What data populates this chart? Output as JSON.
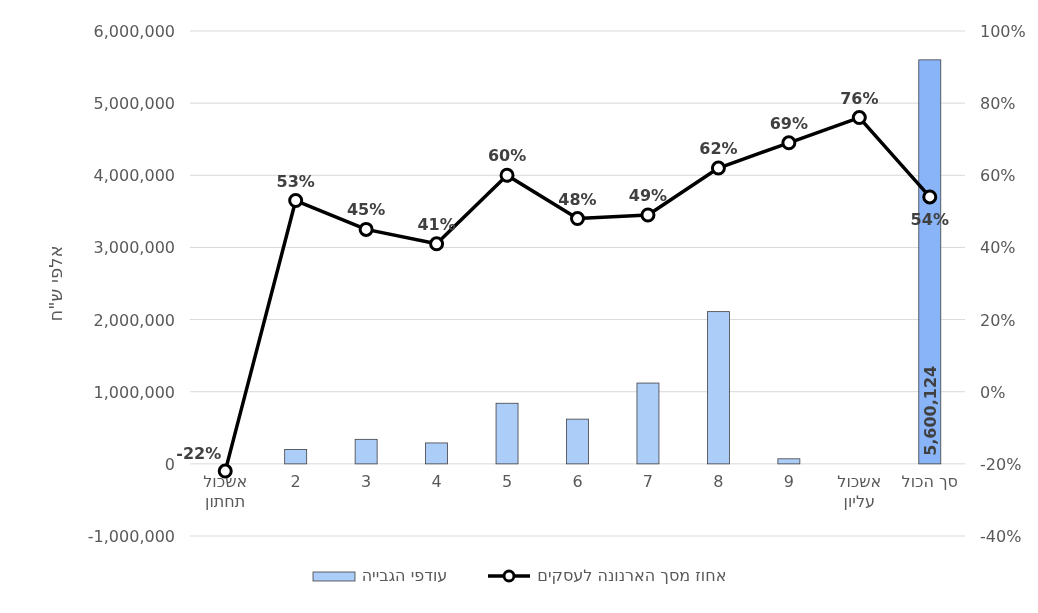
{
  "chart_data": {
    "type": "bar",
    "categories": [
      "אשכול תחתון",
      "2",
      "3",
      "4",
      "5",
      "6",
      "7",
      "8",
      "9",
      "אשכול עליון",
      "סך הכול"
    ],
    "ylabel": "אלפי ש\"ח",
    "ylim": [
      -1000000,
      6000000
    ],
    "yticks": [
      {
        "value": -1000000,
        "label": "-1,000,000"
      },
      {
        "value": 0,
        "label": "0"
      },
      {
        "value": 1000000,
        "label": "1,000,000"
      },
      {
        "value": 2000000,
        "label": "2,000,000"
      },
      {
        "value": 3000000,
        "label": "3,000,000"
      },
      {
        "value": 4000000,
        "label": "4,000,000"
      },
      {
        "value": 5000000,
        "label": "5,000,000"
      },
      {
        "value": 6000000,
        "label": "6,000,000"
      }
    ],
    "y2lim": [
      -40,
      100
    ],
    "y2ticks": [
      {
        "value": -40,
        "label": "-40%"
      },
      {
        "value": -20,
        "label": "-20%"
      },
      {
        "value": 0,
        "label": "0%"
      },
      {
        "value": 20,
        "label": "20%"
      },
      {
        "value": 40,
        "label": "40%"
      },
      {
        "value": 60,
        "label": "60%"
      },
      {
        "value": 80,
        "label": "80%"
      },
      {
        "value": 100,
        "label": "100%"
      }
    ],
    "grid": "y",
    "legend": "bottom",
    "marker": "circle",
    "series": [
      {
        "name": "עודפי הגבייה",
        "colors": [
          "#adcdf9",
          "#adcdf9",
          "#adcdf9",
          "#adcdf9",
          "#adcdf9",
          "#adcdf9",
          "#adcdf9",
          "#adcdf9",
          "#adcdf9",
          "#adcdf9",
          "#8ab4f8"
        ],
        "values": [
          0,
          200000,
          340000,
          290000,
          840000,
          620000,
          1120000,
          2110000,
          70000,
          0,
          5600124
        ],
        "value_labels": [
          null,
          null,
          null,
          null,
          null,
          null,
          null,
          null,
          null,
          null,
          "5,600,124"
        ]
      },
      {
        "name": "אחוז מסך הארנונה לעסקים",
        "type": "line",
        "axis": "y2",
        "color": "#000000",
        "values": [
          -22,
          53,
          45,
          41,
          60,
          48,
          49,
          62,
          69,
          76,
          54
        ],
        "value_labels": [
          "-22%",
          "53%",
          "45%",
          "41%",
          "60%",
          "48%",
          "49%",
          "62%",
          "69%",
          "76%",
          "54%"
        ]
      }
    ]
  }
}
